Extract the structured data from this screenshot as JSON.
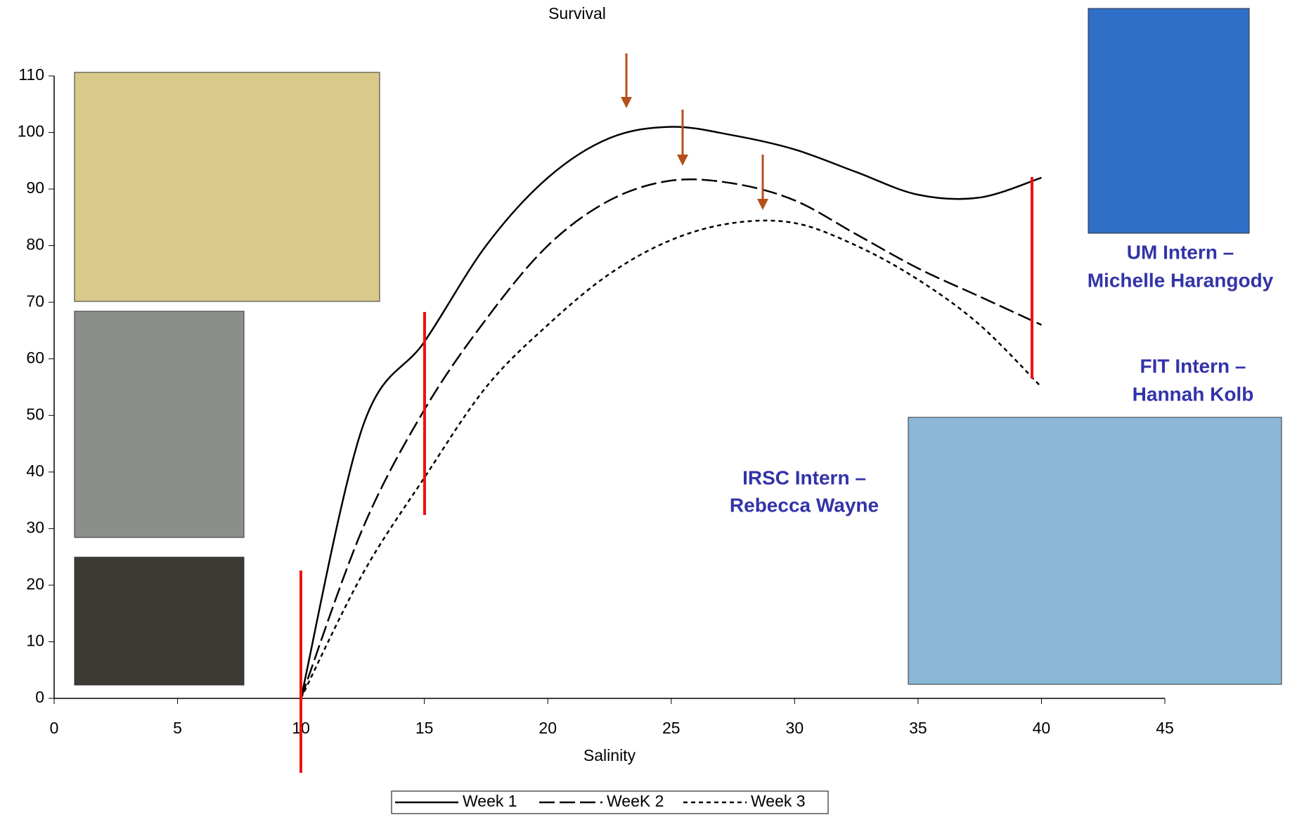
{
  "chart_data": {
    "type": "line",
    "title": "Survival",
    "x_label": "Salinity",
    "x": [
      10,
      12.5,
      15,
      17.5,
      20,
      22.5,
      25,
      27.5,
      30,
      32.5,
      35,
      37.5,
      40
    ],
    "series": [
      {
        "name": "Week 1",
        "color": "#000000",
        "style": "solid",
        "values": [
          0,
          48,
          63,
          80,
          92,
          99,
          101,
          99.5,
          97,
          93,
          89,
          88.5,
          92
        ]
      },
      {
        "name": "WeeK 2",
        "color": "#000000",
        "style": "dashed",
        "values": [
          0,
          30,
          51,
          67,
          80,
          88,
          91.5,
          91,
          88,
          82,
          76,
          71,
          66
        ]
      },
      {
        "name": "Week 3",
        "color": "#000000",
        "style": "dotted",
        "values": [
          0,
          22,
          39,
          55,
          66,
          75,
          81,
          84,
          84,
          80,
          74,
          66,
          55
        ]
      }
    ],
    "xlim": [
      0,
      45
    ],
    "xticks": [
      0,
      5,
      10,
      15,
      20,
      25,
      30,
      35,
      40,
      45
    ],
    "ylim": [
      0,
      110
    ],
    "yticks": [
      0,
      10,
      20,
      30,
      40,
      50,
      60,
      70,
      80,
      90,
      100,
      110
    ],
    "legend": "bottom",
    "annotations": [
      "UM Intern –",
      "Michelle Harangody",
      "FIT Intern –",
      "Hannah Kolb",
      "IRSC Intern –",
      "Rebecca Wayne"
    ]
  }
}
